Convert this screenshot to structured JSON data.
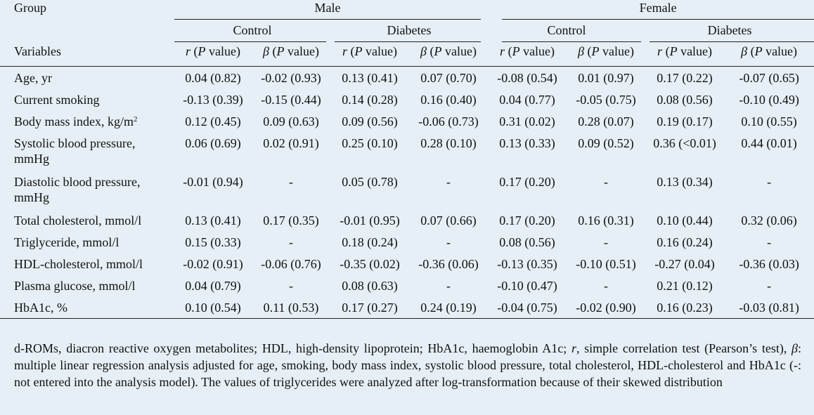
{
  "header": {
    "group": "Group",
    "variables": "Variables",
    "male": "Male",
    "female": "Female",
    "control": "Control",
    "diabetes": "Diabetes",
    "r_label": "r",
    "beta_label": "β",
    "p_value": "(P value)"
  },
  "rows": [
    {
      "label": "Age, yr",
      "vals": [
        "0.04 (0.82)",
        "-0.02 (0.93)",
        "0.13 (0.41)",
        "0.07 (0.70)",
        "-0.08 (0.54)",
        "0.01 (0.97)",
        "0.17 (0.22)",
        "-0.07 (0.65)"
      ]
    },
    {
      "label": "Current smoking",
      "vals": [
        "-0.13 (0.39)",
        "-0.15 (0.44)",
        "0.14 (0.28)",
        "0.16 (0.40)",
        "0.04 (0.77)",
        "-0.05 (0.75)",
        "0.08 (0.56)",
        "-0.10 (0.49)"
      ]
    },
    {
      "label": "Body mass index, kg/m",
      "label_sup": "2",
      "vals": [
        "0.12 (0.45)",
        "0.09 (0.63)",
        "0.09 (0.56)",
        "-0.06 (0.73)",
        "0.31 (0.02)",
        "0.28 (0.07)",
        "0.19 (0.17)",
        "0.10 (0.55)"
      ]
    },
    {
      "label": "Systolic blood pressure, mmHg",
      "vals": [
        "0.06 (0.69)",
        "0.02 (0.91)",
        "0.25 (0.10)",
        "0.28 (0.10)",
        "0.13 (0.33)",
        "0.09 (0.52)",
        "0.36 (<0.01)",
        "0.44 (0.01)"
      ]
    },
    {
      "label": "Diastolic blood pressure, mmHg",
      "vals": [
        "-0.01 (0.94)",
        "-",
        "0.05 (0.78)",
        "-",
        "0.17 (0.20)",
        "-",
        "0.13 (0.34)",
        "-"
      ]
    },
    {
      "label": "Total cholesterol, mmol/l",
      "vals": [
        "0.13 (0.41)",
        "0.17 (0.35)",
        "-0.01 (0.95)",
        "0.07 (0.66)",
        "0.17 (0.20)",
        "0.16 (0.31)",
        "0.10 (0.44)",
        "0.32 (0.06)"
      ]
    },
    {
      "label": "Triglyceride, mmol/l",
      "vals": [
        "0.15 (0.33)",
        "-",
        "0.18 (0.24)",
        "-",
        "0.08 (0.56)",
        "-",
        "0.16 (0.24)",
        "-"
      ]
    },
    {
      "label": "HDL-cholesterol, mmol/l",
      "vals": [
        "-0.02 (0.91)",
        "-0.06 (0.76)",
        "-0.35 (0.02)",
        "-0.36 (0.06)",
        "-0.13 (0.35)",
        "-0.10 (0.51)",
        "-0.27 (0.04)",
        "-0.36 (0.03)"
      ]
    },
    {
      "label": "Plasma glucose, mmol/l",
      "vals": [
        "0.04 (0.79)",
        "-",
        "0.08 (0.63)",
        "-",
        "-0.10 (0.47)",
        "-",
        "0.21 (0.12)",
        "-"
      ]
    },
    {
      "label": "HbA1c, %",
      "vals": [
        "0.10 (0.54)",
        "0.11 (0.53)",
        "0.17 (0.27)",
        "0.24 (0.19)",
        "-0.04 (0.75)",
        "-0.02 (0.90)",
        "0.16 (0.23)",
        "-0.03 (0.81)"
      ]
    }
  ],
  "footnote": {
    "part1": "d-ROMs, diacron reactive oxygen metabolites; HDL, high-density lipoprotein; HbA1c, haemoglobin A1c; ",
    "r": "r",
    "part2": ", simple correlation test (Pearson’s test), ",
    "beta": "β",
    "part3": ": multiple linear regression analysis adjusted for age, smoking, body mass index, systolic blood pressure, total cholesterol, HDL-cholesterol and HbA1c (-: not entered into the analysis model). The values of triglycerides were analyzed after log-transformation because of their skewed distribution"
  }
}
